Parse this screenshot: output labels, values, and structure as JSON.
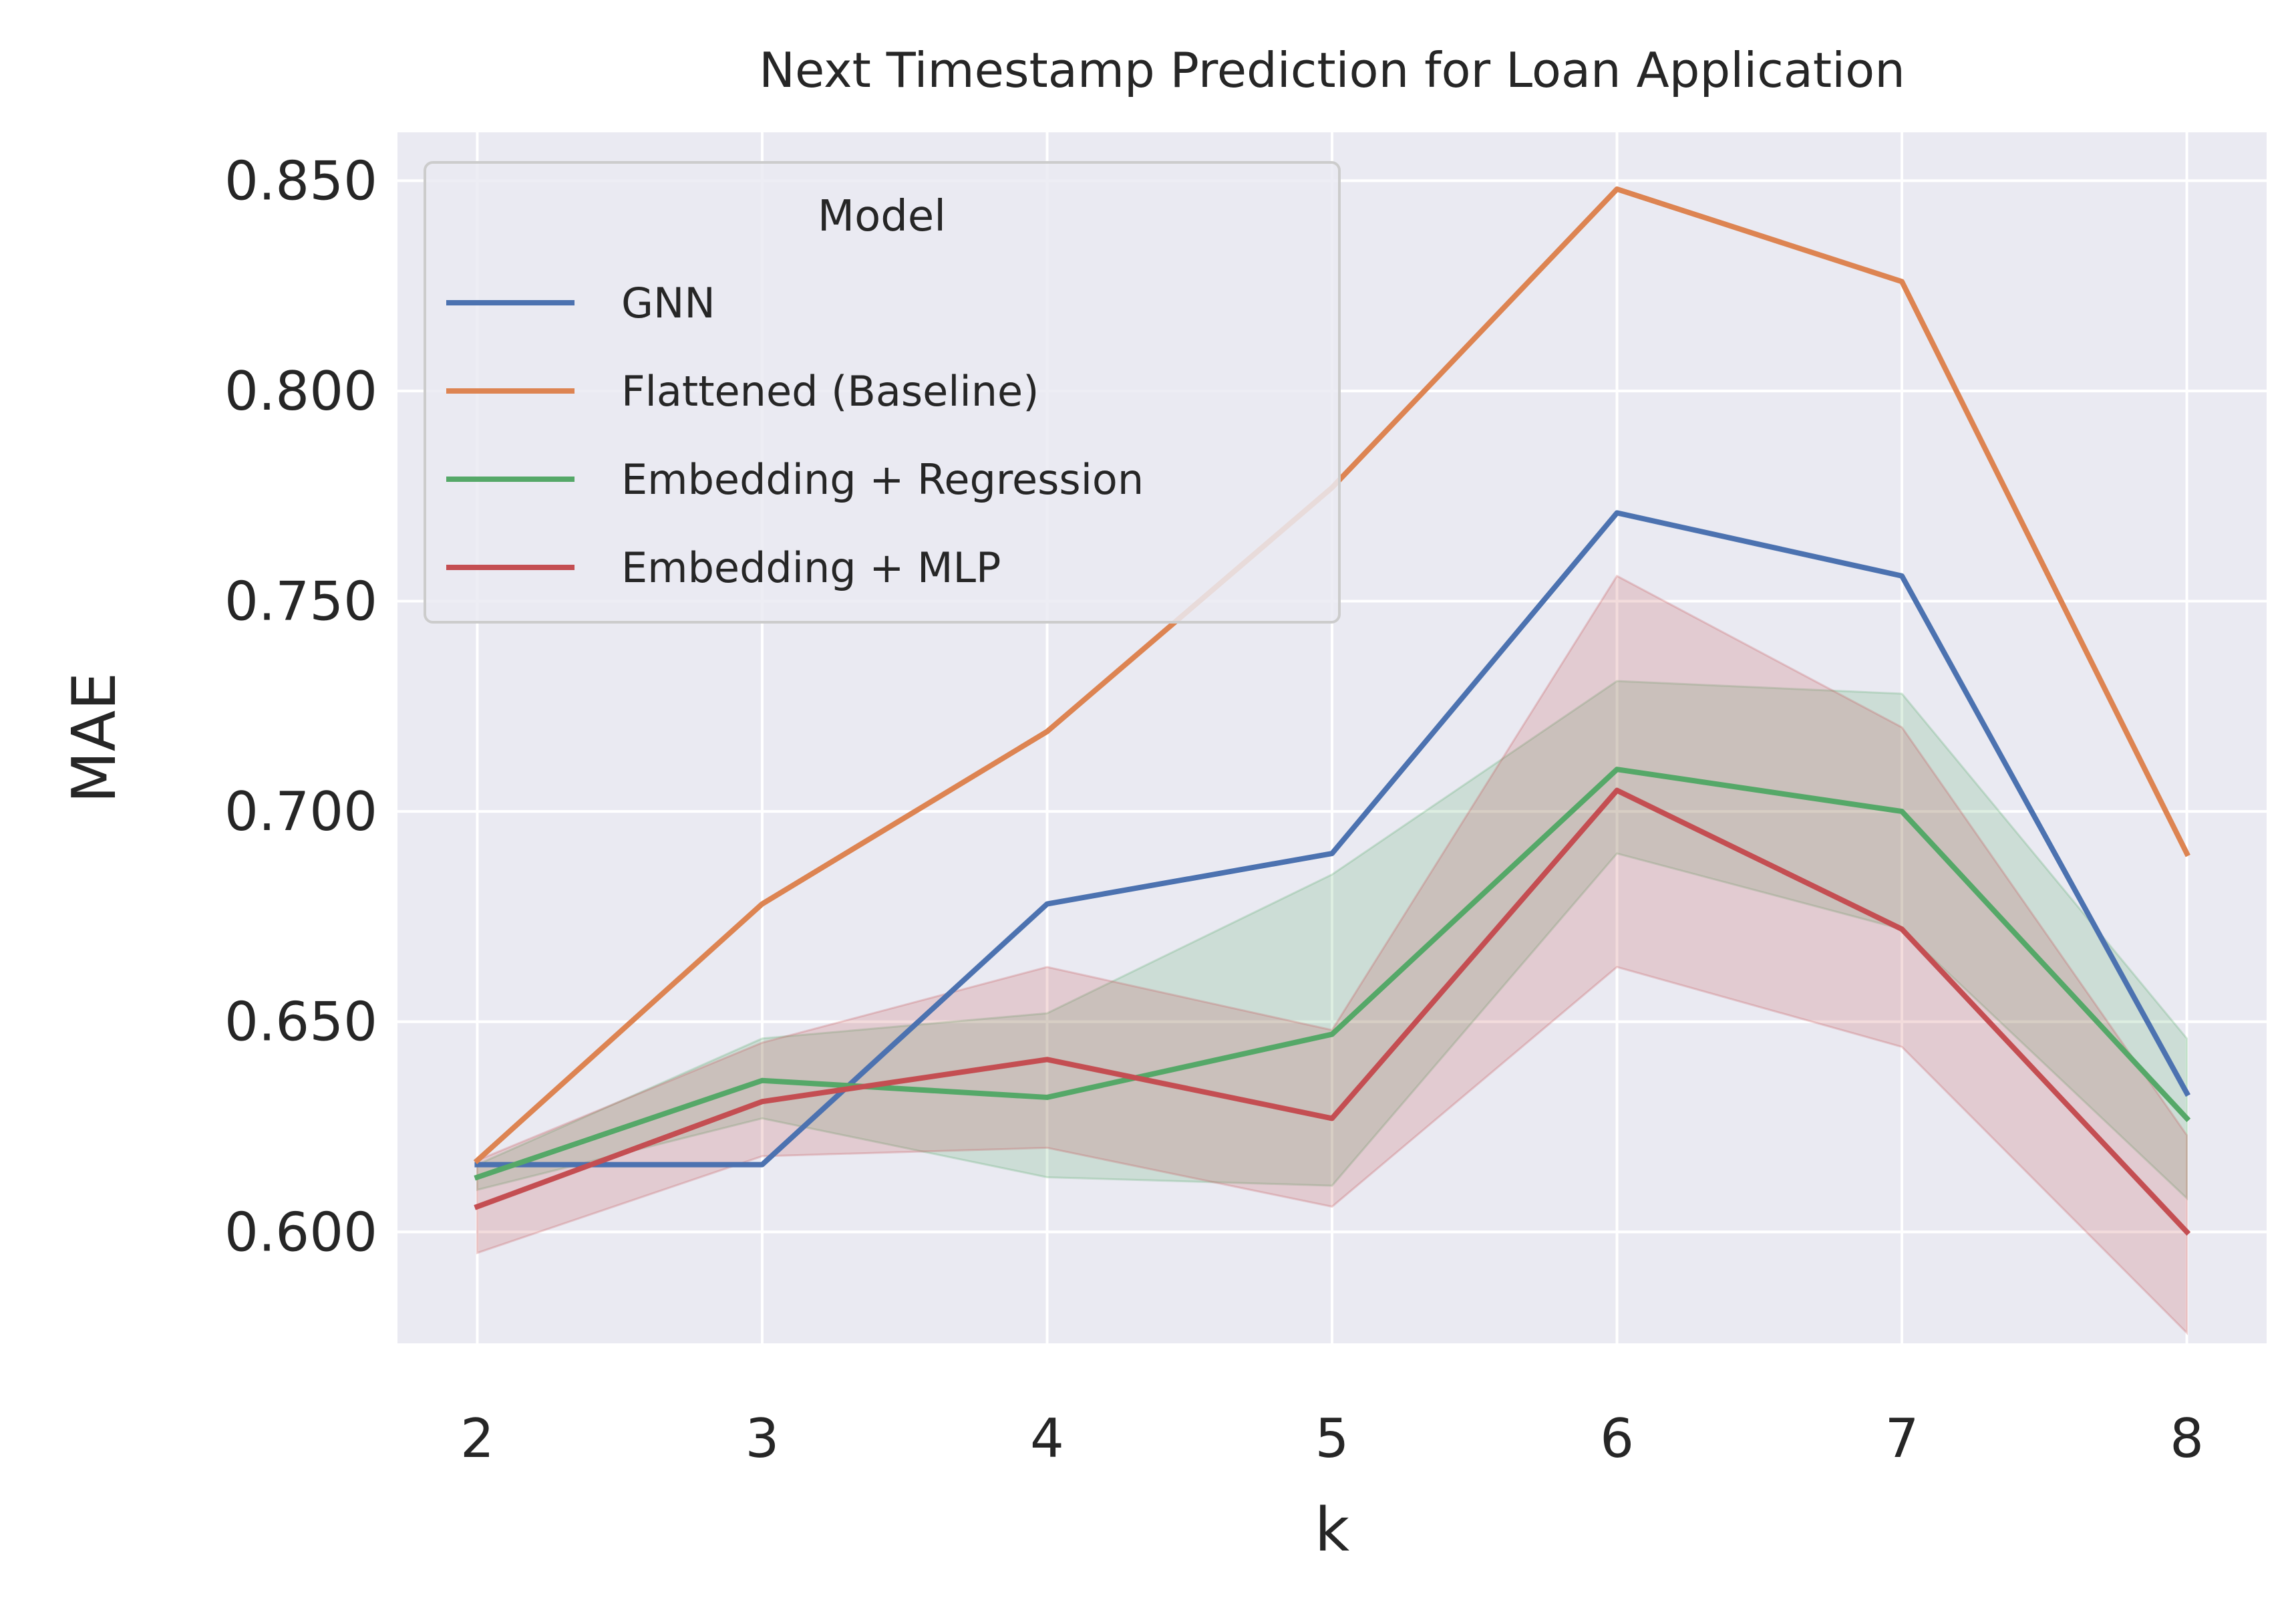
{
  "chart_data": {
    "type": "line",
    "title": "Next Timestamp Prediction for Loan Application",
    "xlabel": "k",
    "ylabel": "MAE",
    "x": [
      2,
      3,
      4,
      5,
      6,
      7,
      8
    ],
    "xlim": [
      1.72,
      8.28
    ],
    "ylim": [
      0.5735,
      0.8615
    ],
    "yticks": [
      "0.600",
      "0.650",
      "0.700",
      "0.750",
      "0.800",
      "0.850"
    ],
    "ytick_values": [
      0.6,
      0.65,
      0.7,
      0.75,
      0.8,
      0.85
    ],
    "grid": true,
    "legend": {
      "title": "Model",
      "placement": "top-left"
    },
    "series": [
      {
        "name": "GNN",
        "color": "#4c72b0",
        "values": [
          0.616,
          0.616,
          0.678,
          0.69,
          0.771,
          0.756,
          0.633
        ]
      },
      {
        "name": "Flattened (Baseline)",
        "color": "#dd8452",
        "values": [
          0.617,
          0.678,
          0.719,
          0.777,
          0.848,
          0.826,
          0.69
        ]
      },
      {
        "name": "Embedding + Regression",
        "color": "#55a868",
        "values": [
          0.613,
          0.636,
          0.632,
          0.647,
          0.71,
          0.7,
          0.627
        ],
        "band_low": [
          0.61,
          0.627,
          0.613,
          0.611,
          0.69,
          0.672,
          0.608
        ],
        "band_high": [
          0.616,
          0.646,
          0.652,
          0.685,
          0.731,
          0.728,
          0.646
        ]
      },
      {
        "name": "Embedding + MLP",
        "color": "#c44e52",
        "values": [
          0.606,
          0.631,
          0.641,
          0.627,
          0.705,
          0.672,
          0.6
        ],
        "band_low": [
          0.595,
          0.618,
          0.62,
          0.606,
          0.663,
          0.644,
          0.576
        ],
        "band_high": [
          0.617,
          0.645,
          0.663,
          0.648,
          0.756,
          0.72,
          0.623
        ]
      }
    ]
  }
}
